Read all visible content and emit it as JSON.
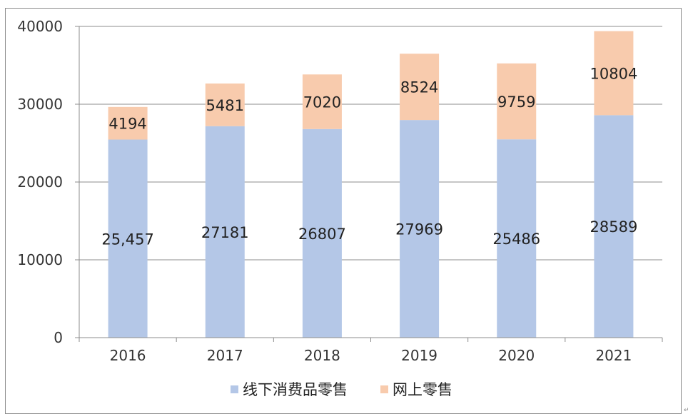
{
  "chart_data": {
    "type": "bar",
    "stacked": true,
    "title": "",
    "xlabel": "",
    "ylabel": "",
    "categories": [
      "2016",
      "2017",
      "2018",
      "2019",
      "2020",
      "2021"
    ],
    "series": [
      {
        "name": "线下消费品零售",
        "color": "#b4c7e7",
        "values": [
          25457,
          27181,
          26807,
          27969,
          25486,
          28589
        ],
        "labels": [
          "25,457",
          "27181",
          "26807",
          "27969",
          "25486",
          "28589"
        ]
      },
      {
        "name": "网上零售",
        "color": "#f8cbad",
        "values": [
          4194,
          5481,
          7020,
          8524,
          9759,
          10804
        ],
        "labels": [
          "4194",
          "5481",
          "7020",
          "8524",
          "9759",
          "10804"
        ]
      }
    ],
    "ylim": [
      0,
      40000
    ],
    "yticks": [
      0,
      10000,
      20000,
      30000,
      40000
    ],
    "grid": true,
    "legend_position": "bottom"
  },
  "legend": {
    "items": [
      {
        "label": "线下消费品零售",
        "color": "#b4c7e7"
      },
      {
        "label": "网上零售",
        "color": "#f8cbad"
      }
    ]
  },
  "paragraph_mark": "↵"
}
